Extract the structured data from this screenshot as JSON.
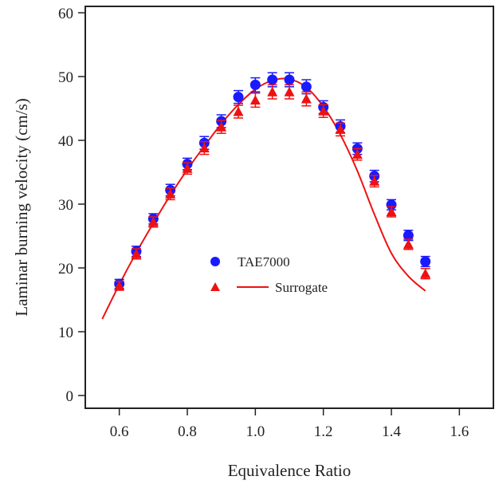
{
  "chart_data": {
    "type": "scatter",
    "xlabel": "Equivalence Ratio",
    "ylabel": "Laminar burning velocity (cm/s)",
    "xlim": [
      0.5,
      1.7
    ],
    "ylim": [
      -2,
      61
    ],
    "xticks": [
      "0.6",
      "0.8",
      "1.0",
      "1.2",
      "1.4",
      "1.6"
    ],
    "yticks": [
      "0",
      "10",
      "20",
      "30",
      "40",
      "50",
      "60"
    ],
    "grid": false,
    "legend_position": "center",
    "series": [
      {
        "name": "TAE7000",
        "marker": "circle",
        "color": "#1a1aff",
        "x": [
          0.6,
          0.65,
          0.7,
          0.75,
          0.8,
          0.85,
          0.9,
          0.95,
          1.0,
          1.05,
          1.1,
          1.15,
          1.2,
          1.25,
          1.3,
          1.35,
          1.4,
          1.45,
          1.5
        ],
        "y": [
          17.5,
          22.6,
          27.7,
          32.2,
          36.3,
          39.6,
          43.0,
          46.8,
          48.7,
          49.5,
          49.5,
          48.4,
          45.2,
          42.2,
          38.7,
          34.4,
          29.9,
          25.1,
          21.0
        ],
        "error": [
          0.7,
          0.8,
          0.8,
          0.9,
          0.9,
          1.0,
          1.0,
          1.0,
          1.1,
          1.1,
          1.1,
          1.1,
          1.0,
          1.0,
          0.9,
          0.9,
          0.8,
          0.8,
          0.8
        ]
      },
      {
        "name": "Surrogate",
        "marker": "triangle",
        "color": "#ee1111",
        "x": [
          0.6,
          0.65,
          0.7,
          0.75,
          0.8,
          0.85,
          0.9,
          0.95,
          1.0,
          1.05,
          1.1,
          1.15,
          1.2,
          1.25,
          1.3,
          1.35,
          1.4,
          1.45,
          1.5
        ],
        "y": [
          17.2,
          22.2,
          27.2,
          31.6,
          35.6,
          38.8,
          42.1,
          44.5,
          46.3,
          47.6,
          47.6,
          46.5,
          44.6,
          41.7,
          37.8,
          33.6,
          28.8,
          23.7,
          19.1
        ],
        "error": [
          0.7,
          0.8,
          0.8,
          0.9,
          0.9,
          1.0,
          1.0,
          1.0,
          1.1,
          1.1,
          1.1,
          1.1,
          1.0,
          1.0,
          0.9,
          0.9,
          0.8,
          0.8,
          0.8
        ]
      },
      {
        "name": "Surrogate",
        "type": "line",
        "color": "#ee1111",
        "x": [
          0.55,
          0.6,
          0.65,
          0.7,
          0.75,
          0.8,
          0.85,
          0.9,
          0.95,
          1.0,
          1.05,
          1.1,
          1.15,
          1.2,
          1.25,
          1.3,
          1.35,
          1.4,
          1.45,
          1.5
        ],
        "y": [
          12.0,
          17.4,
          22.4,
          27.0,
          31.4,
          35.4,
          39.1,
          42.6,
          45.6,
          48.0,
          49.4,
          49.6,
          48.3,
          45.3,
          40.9,
          35.2,
          28.4,
          22.3,
          18.7,
          16.4
        ]
      }
    ]
  }
}
